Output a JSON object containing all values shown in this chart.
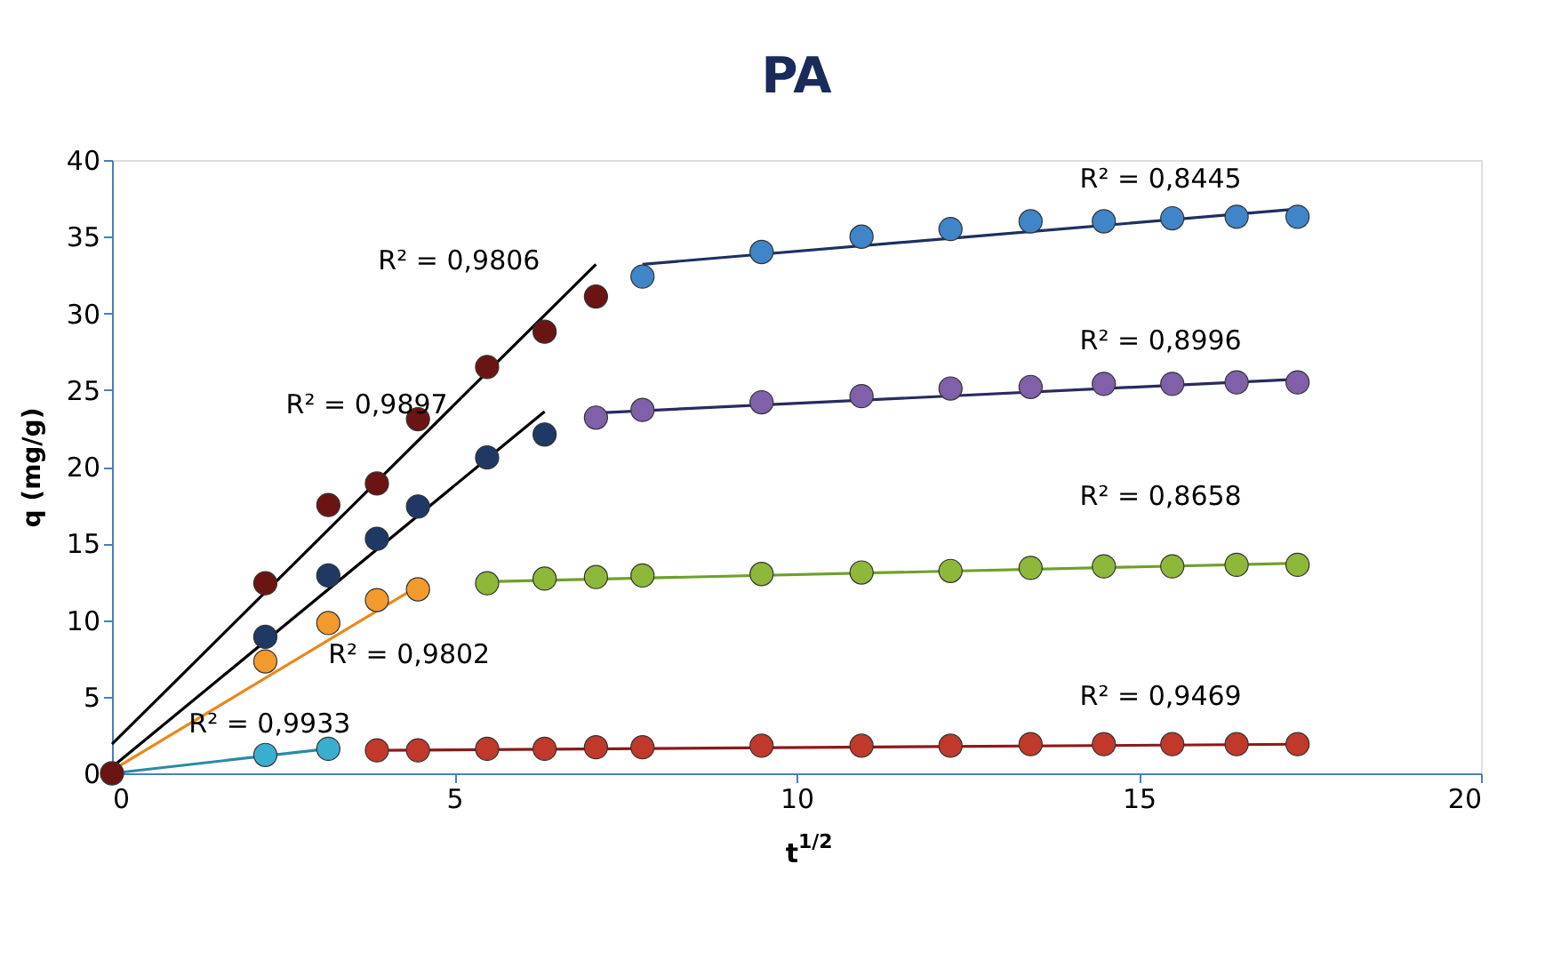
{
  "chart_data": {
    "type": "scatter",
    "title": "PA",
    "xlabel": "t$^{1/2}$",
    "ylabel": "q (mg/g)",
    "xlim": [
      0,
      20
    ],
    "xticks": [
      0,
      5,
      10,
      15,
      20
    ],
    "ylim": [
      0,
      40
    ],
    "yticks": [
      0,
      5,
      10,
      15,
      20,
      25,
      30,
      35,
      40
    ],
    "grid": false,
    "marker": "circle",
    "series": [
      {
        "color": "#6b1414",
        "x": [
          0,
          2.24,
          3.16,
          3.87,
          4.47,
          5.48,
          6.32,
          7.07
        ],
        "values": [
          0,
          12.4,
          17.5,
          18.9,
          23.1,
          26.5,
          28.8,
          31.1
        ]
      },
      {
        "color": "#1f3864",
        "x": [
          2.24,
          3.16,
          3.87,
          4.47,
          5.48,
          6.32
        ],
        "values": [
          8.9,
          12.9,
          15.3,
          17.4,
          20.6,
          22.1
        ]
      },
      {
        "color": "#f39a2e",
        "x": [
          2.24,
          3.16,
          3.87,
          4.47
        ],
        "values": [
          7.3,
          9.8,
          11.3,
          12.0
        ]
      },
      {
        "color": "#3aaecf",
        "x": [
          2.24,
          3.16
        ],
        "values": [
          1.2,
          1.6
        ]
      },
      {
        "color": "#c0392b",
        "x": [
          3.87,
          4.47,
          5.48,
          6.32,
          7.07,
          7.75,
          9.49,
          10.95,
          12.25,
          13.42,
          14.49,
          15.49,
          16.43,
          17.32
        ],
        "values": [
          1.5,
          1.5,
          1.6,
          1.6,
          1.7,
          1.7,
          1.8,
          1.8,
          1.8,
          1.9,
          1.9,
          1.9,
          1.9,
          1.9
        ]
      },
      {
        "color": "#8db83a",
        "x": [
          5.48,
          6.32,
          7.07,
          7.75,
          9.49,
          10.95,
          12.25,
          13.42,
          14.49,
          15.49,
          16.43,
          17.32
        ],
        "values": [
          12.4,
          12.7,
          12.8,
          12.9,
          13.0,
          13.1,
          13.2,
          13.4,
          13.5,
          13.5,
          13.6,
          13.6
        ]
      },
      {
        "color": "#8060a8",
        "x": [
          7.07,
          7.75,
          9.49,
          10.95,
          12.25,
          13.42,
          14.49,
          15.49,
          16.43,
          17.32
        ],
        "values": [
          23.2,
          23.7,
          24.2,
          24.6,
          25.1,
          25.2,
          25.4,
          25.4,
          25.5,
          25.5
        ]
      },
      {
        "color": "#3f85c8",
        "x": [
          7.75,
          9.49,
          10.95,
          12.25,
          13.42,
          14.49,
          15.49,
          16.43,
          17.32
        ],
        "values": [
          32.4,
          34.0,
          35.0,
          35.5,
          36.0,
          36.0,
          36.2,
          36.3,
          36.3
        ]
      },
      {
        "type": "line",
        "color": "#000000",
        "marker": "none",
        "x": [
          0,
          7.07
        ],
        "values": [
          1.9,
          33.2
        ]
      },
      {
        "type": "line",
        "color": "#000000",
        "marker": "none",
        "x": [
          0,
          6.32
        ],
        "values": [
          0.4,
          23.6
        ]
      },
      {
        "type": "line",
        "color": "#e8891a",
        "marker": "none",
        "x": [
          0,
          4.47
        ],
        "values": [
          0.2,
          12.2
        ]
      },
      {
        "type": "line",
        "color": "#2a8aa8",
        "marker": "none",
        "x": [
          0,
          3.16
        ],
        "values": [
          0.0,
          1.6
        ]
      },
      {
        "type": "line",
        "color": "#8b1a1a",
        "marker": "none",
        "x": [
          3.87,
          17.32
        ],
        "values": [
          1.5,
          1.9
        ]
      },
      {
        "type": "line",
        "color": "#6fa02a",
        "marker": "none",
        "x": [
          5.48,
          17.32
        ],
        "values": [
          12.5,
          13.7
        ]
      },
      {
        "type": "line",
        "color": "#2a2a60",
        "marker": "none",
        "x": [
          7.07,
          17.32
        ],
        "values": [
          23.5,
          25.7
        ]
      },
      {
        "type": "line",
        "color": "#1f3060",
        "marker": "none",
        "x": [
          7.75,
          17.32
        ],
        "values": [
          33.2,
          36.8
        ]
      }
    ],
    "annotations": [
      "R² = 0,9806",
      "R² = 0,9897",
      "R² = 0,9802",
      "R² = 0,9933",
      "R² = 0,9469",
      "R² = 0,8658",
      "R² = 0,8996",
      "R² = 0,8445"
    ]
  }
}
